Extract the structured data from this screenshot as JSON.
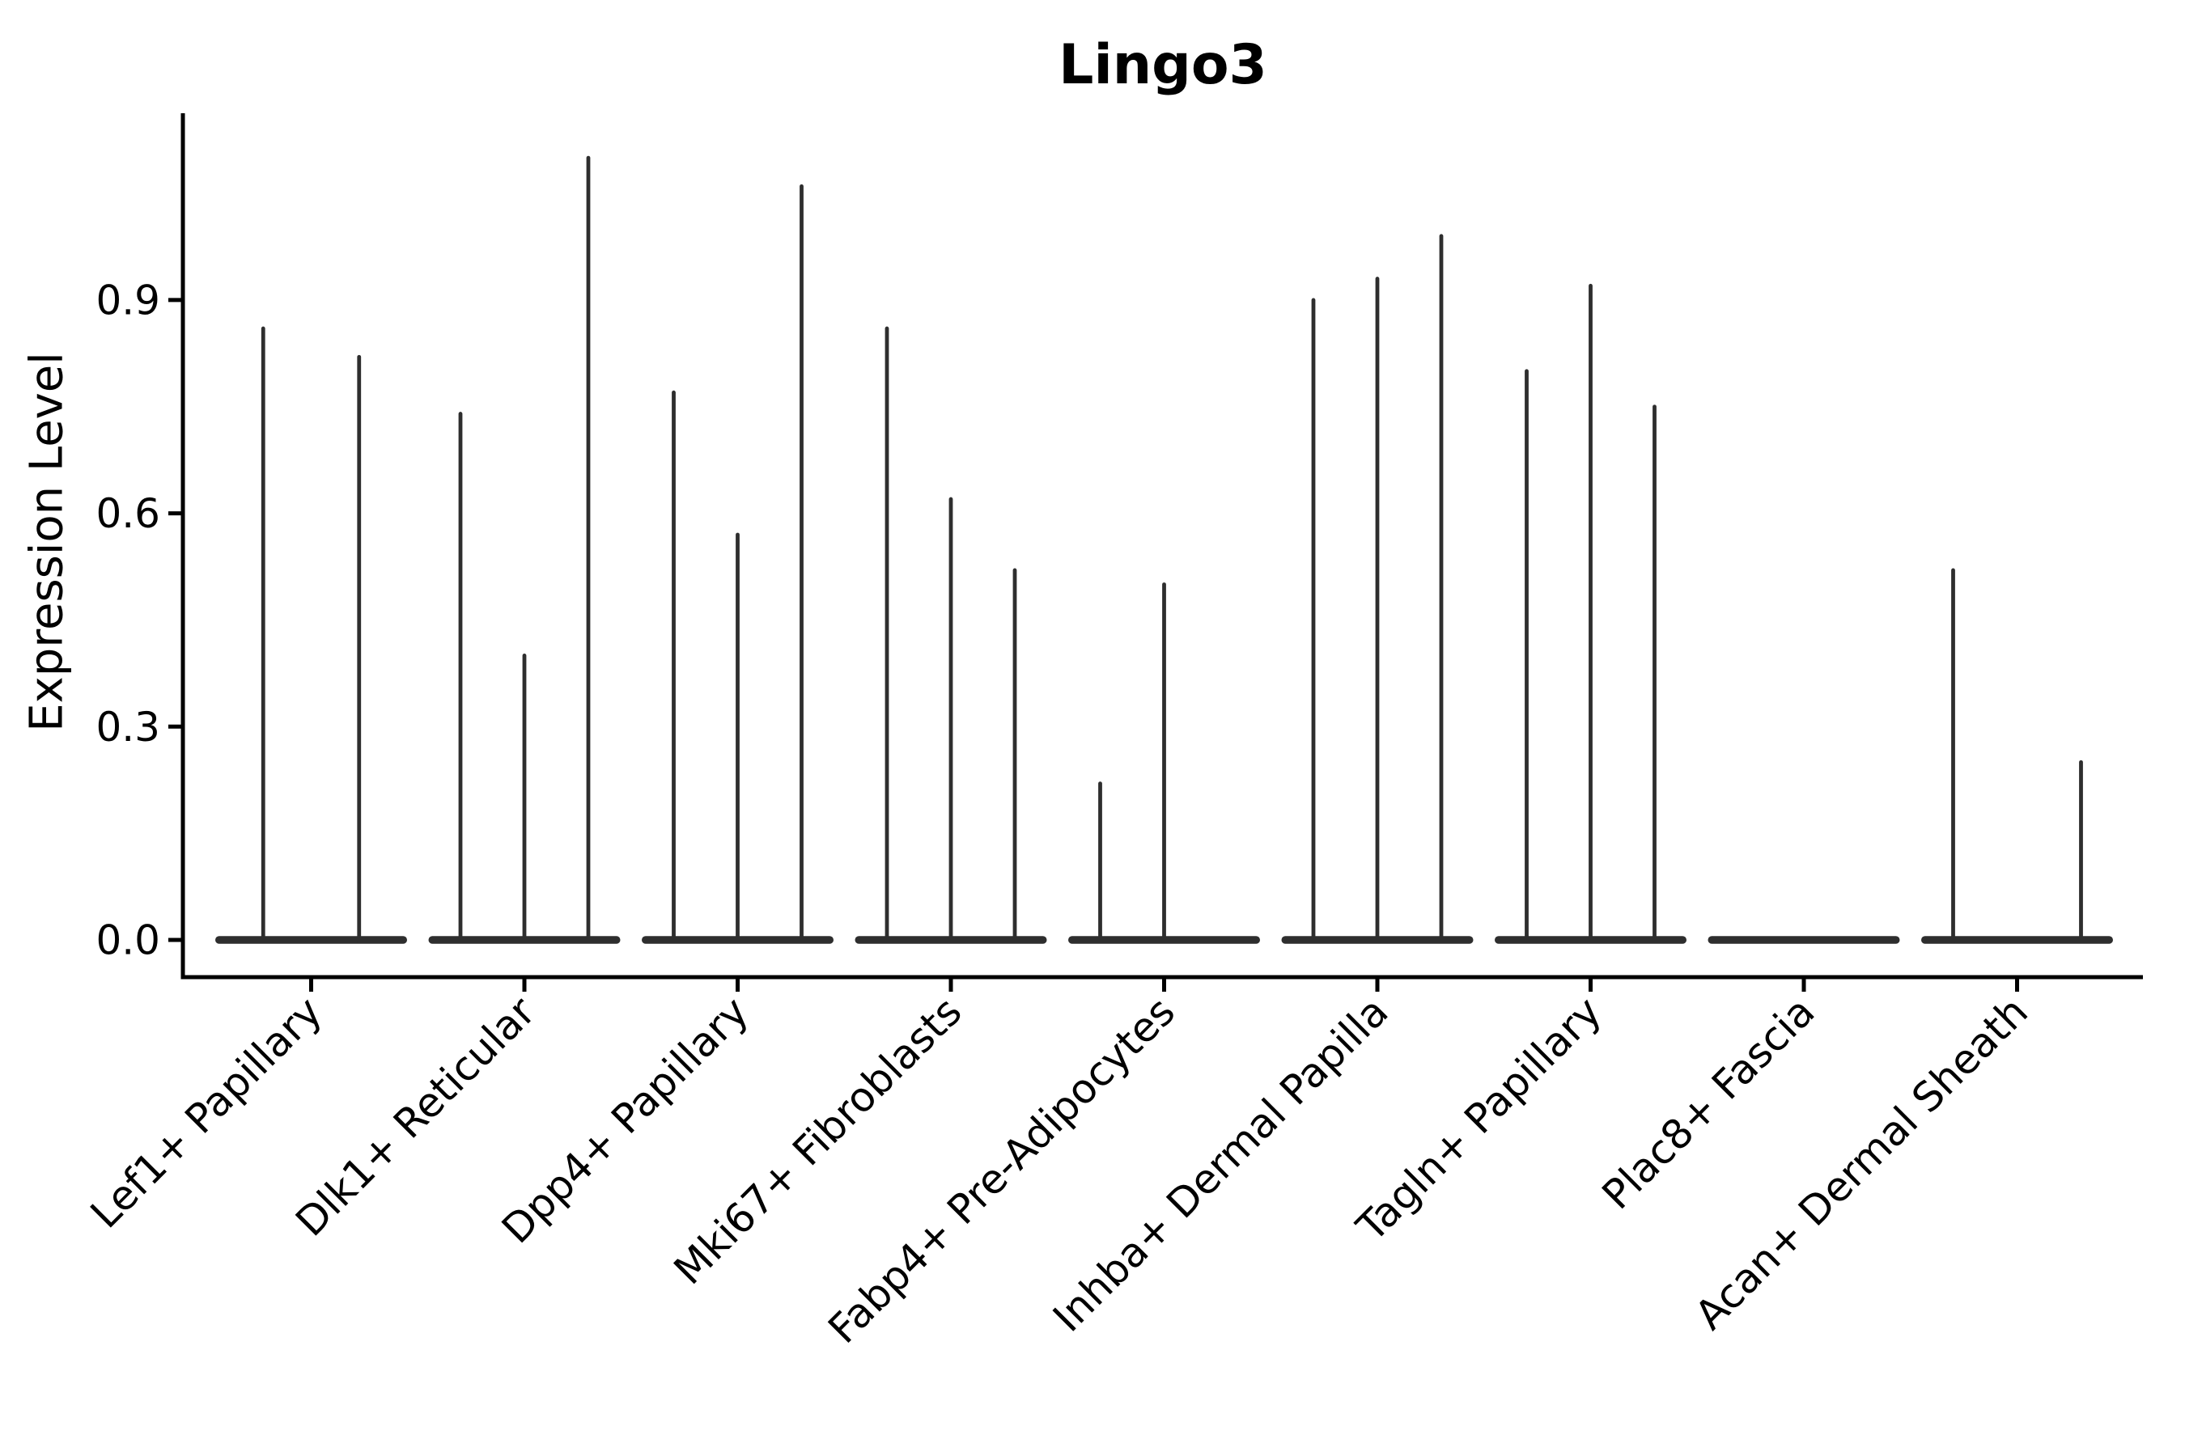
{
  "title": "Lingo3",
  "ylabel": "Expression Level",
  "colors": {
    "background": "#ffffff",
    "violin": "#2e2e2e",
    "axis": "#000000",
    "text": "#000000"
  },
  "chart_data": {
    "type": "violin",
    "title": "Lingo3",
    "xlabel": "",
    "ylabel": "Expression Level",
    "legend_position": "none",
    "grid": false,
    "orientation": "vertical",
    "ylim": [
      -0.052,
      1.163
    ],
    "yticks": [
      0.0,
      0.3,
      0.6,
      0.9
    ],
    "ytick_labels": [
      "0.0",
      "0.3",
      "0.6",
      "0.9"
    ],
    "categories": [
      "Lef1+ Papillary",
      "Dlk1+ Reticular",
      "Dpp4+ Papillary",
      "Mki67+ Fibroblasts",
      "Fabp4+ Pre-Adipocytes",
      "Inhba+ Dermal Papilla",
      "Tagln+ Papillary",
      "Plac8+ Fascia",
      "Acan+ Dermal Sheath"
    ],
    "groups": [
      {
        "category": "Lef1+ Papillary",
        "violin_max_values": [
          0.86,
          0.82
        ]
      },
      {
        "category": "Dlk1+ Reticular",
        "violin_max_values": [
          0.74,
          0.4,
          1.1
        ]
      },
      {
        "category": "Dpp4+ Papillary",
        "violin_max_values": [
          0.77,
          0.57,
          1.06
        ]
      },
      {
        "category": "Mki67+ Fibroblasts",
        "violin_max_values": [
          0.86,
          0.62,
          0.52
        ]
      },
      {
        "category": "Fabp4+ Pre-Adipocytes",
        "violin_max_values": [
          0.22,
          0.5,
          0.0
        ]
      },
      {
        "category": "Inhba+ Dermal Papilla",
        "violin_max_values": [
          0.9,
          0.93,
          0.99
        ]
      },
      {
        "category": "Tagln+ Papillary",
        "violin_max_values": [
          0.8,
          0.92,
          0.75
        ]
      },
      {
        "category": "Plac8+ Fascia",
        "violin_max_values": [
          0.0,
          0.0,
          0.0
        ]
      },
      {
        "category": "Acan+ Dermal Sheath",
        "violin_max_values": [
          0.52,
          0.0,
          0.25
        ]
      }
    ],
    "annotation": "Violins are extremely narrow: bulk of expression at 0 with thin spikes reaching the max expression value per violin"
  }
}
